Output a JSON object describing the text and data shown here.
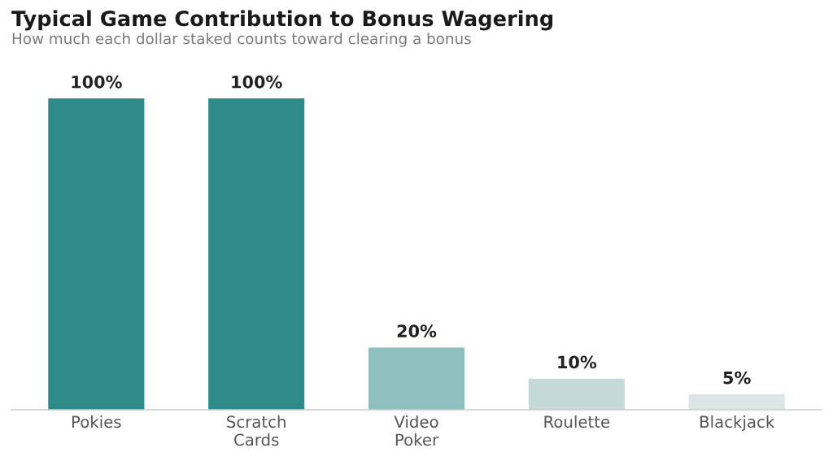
{
  "chart_data": {
    "type": "bar",
    "title": "Typical Game Contribution to Bonus Wagering",
    "subtitle": "How much each dollar staked counts toward clearing a bonus",
    "categories": [
      "Pokies",
      "Scratch\nCards",
      "Video\nPoker",
      "Roulette",
      "Blackjack"
    ],
    "values": [
      100,
      100,
      20,
      10,
      5
    ],
    "value_labels": [
      "100%",
      "100%",
      "20%",
      "10%",
      "5%"
    ],
    "colors": [
      "#2e8b89",
      "#2e8b89",
      "#8fbfbe",
      "#c4d9d8",
      "#dbe6e5"
    ],
    "tick_labels": "x"
  }
}
